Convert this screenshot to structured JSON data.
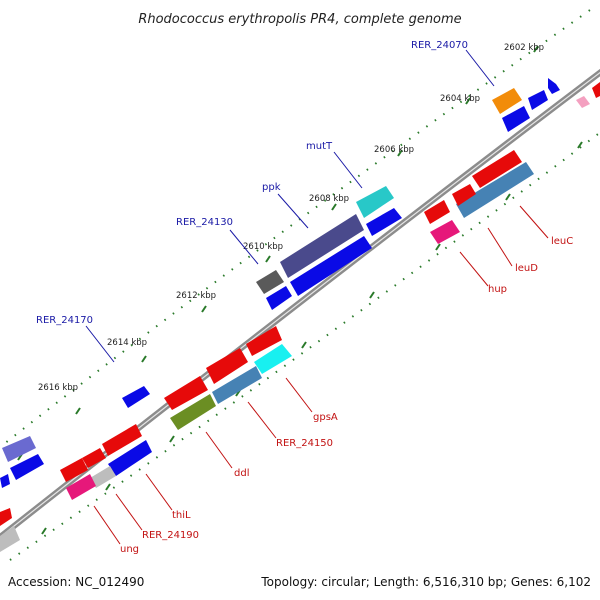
{
  "title": "Rhodococcus erythropolis PR4, complete genome",
  "footer": {
    "accession": "Accession: NC_012490",
    "summary": "Topology: circular; Length: 6,516,310 bp; Genes: 6,102"
  },
  "ticks": [
    "2602 kbp",
    "2604 kbp",
    "2606 kbp",
    "2608 kbp",
    "2610 kbp",
    "2612 kbp",
    "2614 kbp",
    "2616 kbp"
  ],
  "labels_top": [
    "RER_24070",
    "mutT",
    "ppk",
    "RER_24130",
    "RER_24170"
  ],
  "labels_bottom": [
    "leuC",
    "leuD",
    "hup",
    "gpsA",
    "RER_24150",
    "ddl",
    "thiL",
    "RER_24190",
    "ung"
  ],
  "colors": {
    "forward": "#0a0ae6",
    "reverse": "#e60a0a",
    "backbone": "#8c8c8c",
    "tick": "#2a7a2a",
    "top_label": "#1a1aa6",
    "bottom_label": "#c21212"
  }
}
